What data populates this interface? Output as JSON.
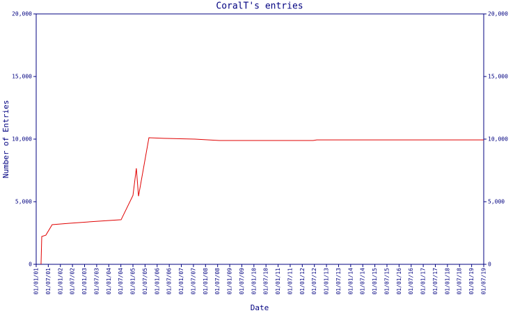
{
  "chart_data": {
    "type": "line",
    "title": "CoralT's entries",
    "xlabel": "Date",
    "ylabel": "Number of Entries",
    "x": [
      2001.2,
      2001.23,
      2001.4,
      2001.66,
      2002.38,
      2003.53,
      2004.51,
      2005.0,
      2005.14,
      2005.23,
      2005.66,
      2006.26,
      2007.56,
      2008.57,
      2012.45,
      2012.6,
      2019.5
    ],
    "series": [
      {
        "name": "CoralT",
        "color": "#e00000",
        "values": [
          0,
          2220,
          2330,
          3170,
          3280,
          3440,
          3560,
          5500,
          7670,
          5440,
          10110,
          10060,
          10000,
          9890,
          9890,
          9940,
          9940
        ]
      }
    ],
    "xlim": [
      2001,
      2019.5
    ],
    "xticks": [
      {
        "value": 2001,
        "label": "01/01/01"
      },
      {
        "value": 2001.5,
        "label": "01/07/01"
      },
      {
        "value": 2002,
        "label": "01/01/02"
      },
      {
        "value": 2002.5,
        "label": "01/07/02"
      },
      {
        "value": 2003,
        "label": "01/01/03"
      },
      {
        "value": 2003.5,
        "label": "01/07/03"
      },
      {
        "value": 2004,
        "label": "01/01/04"
      },
      {
        "value": 2004.5,
        "label": "01/07/04"
      },
      {
        "value": 2005,
        "label": "01/01/05"
      },
      {
        "value": 2005.5,
        "label": "01/07/05"
      },
      {
        "value": 2006,
        "label": "01/01/06"
      },
      {
        "value": 2006.5,
        "label": "01/07/06"
      },
      {
        "value": 2007,
        "label": "01/01/07"
      },
      {
        "value": 2007.5,
        "label": "01/07/07"
      },
      {
        "value": 2008,
        "label": "01/01/08"
      },
      {
        "value": 2008.5,
        "label": "01/07/08"
      },
      {
        "value": 2009,
        "label": "01/01/09"
      },
      {
        "value": 2009.5,
        "label": "01/07/09"
      },
      {
        "value": 2010,
        "label": "01/01/10"
      },
      {
        "value": 2010.5,
        "label": "01/07/10"
      },
      {
        "value": 2011,
        "label": "01/01/11"
      },
      {
        "value": 2011.5,
        "label": "01/07/11"
      },
      {
        "value": 2012,
        "label": "01/01/12"
      },
      {
        "value": 2012.5,
        "label": "01/07/12"
      },
      {
        "value": 2013,
        "label": "01/01/13"
      },
      {
        "value": 2013.5,
        "label": "01/07/13"
      },
      {
        "value": 2014,
        "label": "01/01/14"
      },
      {
        "value": 2014.5,
        "label": "01/07/14"
      },
      {
        "value": 2015,
        "label": "01/01/15"
      },
      {
        "value": 2015.5,
        "label": "01/07/15"
      },
      {
        "value": 2016,
        "label": "01/01/16"
      },
      {
        "value": 2016.5,
        "label": "01/07/16"
      },
      {
        "value": 2017,
        "label": "01/01/17"
      },
      {
        "value": 2017.5,
        "label": "01/07/17"
      },
      {
        "value": 2018,
        "label": "01/01/18"
      },
      {
        "value": 2018.5,
        "label": "01/07/18"
      },
      {
        "value": 2019,
        "label": "01/01/19"
      },
      {
        "value": 2019.5,
        "label": "01/07/19"
      }
    ],
    "ylim": [
      0,
      20000
    ],
    "yticks": [
      0,
      {
        "value": 5000,
        "label": "5,000"
      },
      {
        "value": 10000,
        "label": "10,000"
      },
      {
        "value": 15000,
        "label": "15,000"
      },
      {
        "value": 20000,
        "label": "20,000"
      }
    ],
    "axis_color": "#000080"
  }
}
